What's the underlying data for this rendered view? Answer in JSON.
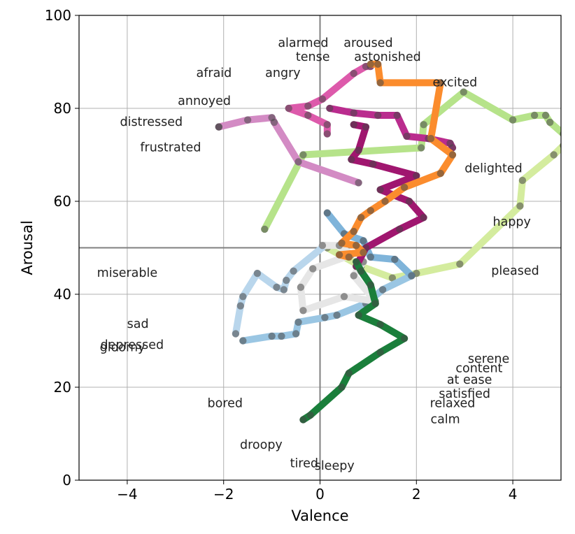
{
  "chart_data": {
    "type": "line",
    "title": "",
    "xlabel": "Valence",
    "ylabel": "Arousal",
    "xlim": [
      -5,
      5
    ],
    "ylim": [
      0,
      100
    ],
    "x_ticks": [
      -4,
      -2,
      0,
      2,
      4
    ],
    "x_tick_labels": [
      "−4",
      "−2",
      "0",
      "2",
      "4"
    ],
    "y_ticks": [
      0,
      20,
      40,
      60,
      80,
      100
    ],
    "y_tick_labels": [
      "0",
      "20",
      "40",
      "60",
      "80",
      "100"
    ],
    "grid": true,
    "reference_lines": {
      "x": 0,
      "y": 50
    },
    "emotion_labels": [
      {
        "text": "alarmed",
        "x": -0.35,
        "y": 94
      },
      {
        "text": "aroused",
        "x": 1.0,
        "y": 94
      },
      {
        "text": "tense",
        "x": -0.15,
        "y": 91
      },
      {
        "text": "astonished",
        "x": 1.4,
        "y": 91
      },
      {
        "text": "afraid",
        "x": -2.2,
        "y": 87.5
      },
      {
        "text": "angry",
        "x": -0.77,
        "y": 87.5
      },
      {
        "text": "excited",
        "x": 2.8,
        "y": 85.5
      },
      {
        "text": "annoyed",
        "x": -2.4,
        "y": 81.5
      },
      {
        "text": "distressed",
        "x": -3.5,
        "y": 77
      },
      {
        "text": "frustrated",
        "x": -3.1,
        "y": 71.5
      },
      {
        "text": "delighted",
        "x": 3.6,
        "y": 67
      },
      {
        "text": "happy",
        "x": 3.98,
        "y": 55.5
      },
      {
        "text": "miserable",
        "x": -4.0,
        "y": 44.5
      },
      {
        "text": "pleased",
        "x": 4.05,
        "y": 45
      },
      {
        "text": "sad",
        "x": -3.78,
        "y": 33.5
      },
      {
        "text": "depressed",
        "x": -3.9,
        "y": 29
      },
      {
        "text": "gloomy",
        "x": -4.1,
        "y": 28.5
      },
      {
        "text": "serene",
        "x": 3.5,
        "y": 26
      },
      {
        "text": "content",
        "x": 3.3,
        "y": 24
      },
      {
        "text": "at ease",
        "x": 3.1,
        "y": 21.5
      },
      {
        "text": "satisfied",
        "x": 3.0,
        "y": 18.5
      },
      {
        "text": "relaxed",
        "x": 2.75,
        "y": 16.5
      },
      {
        "text": "calm",
        "x": 2.6,
        "y": 13
      },
      {
        "text": "bored",
        "x": -1.97,
        "y": 16.5
      },
      {
        "text": "droopy",
        "x": -1.22,
        "y": 7.5
      },
      {
        "text": "tired",
        "x": -0.33,
        "y": 3.5
      },
      {
        "text": "sleepy",
        "x": 0.3,
        "y": 3
      }
    ],
    "series": [
      {
        "color": "#b6e38a",
        "points": [
          [
            -1.15,
            54
          ],
          [
            -0.35,
            70
          ],
          [
            2.1,
            71.5
          ],
          [
            2.15,
            76.5
          ],
          [
            2.98,
            83.5
          ],
          [
            4.0,
            77.5
          ],
          [
            4.45,
            78.5
          ],
          [
            4.68,
            78.5
          ],
          [
            4.77,
            77
          ],
          [
            5.05,
            74.5
          ]
        ]
      },
      {
        "color": "#d4ec9e",
        "points": [
          [
            5.05,
            72
          ],
          [
            4.85,
            70
          ],
          [
            4.2,
            64.5
          ],
          [
            4.15,
            59
          ],
          [
            2.9,
            46.5
          ],
          [
            2.0,
            44.5
          ],
          [
            1.5,
            43.5
          ],
          [
            0.85,
            46
          ],
          [
            0.15,
            50
          ]
        ]
      },
      {
        "color": "#b9d6ec",
        "points": [
          [
            0.1,
            50.5
          ],
          [
            -0.55,
            45
          ],
          [
            -0.7,
            43
          ],
          [
            -0.75,
            41
          ],
          [
            -0.9,
            41.5
          ],
          [
            -1.3,
            44.5
          ],
          [
            -1.6,
            39.5
          ],
          [
            -1.65,
            37.5
          ],
          [
            -1.75,
            31.5
          ]
        ]
      },
      {
        "color": "#9ac6e3",
        "points": [
          [
            -1.6,
            30
          ],
          [
            -1.0,
            31
          ],
          [
            -0.8,
            31
          ],
          [
            -0.5,
            31.5
          ],
          [
            -0.45,
            34
          ],
          [
            0.1,
            35
          ],
          [
            0.35,
            35.5
          ],
          [
            0.95,
            38
          ],
          [
            1.3,
            41
          ],
          [
            1.9,
            44
          ]
        ]
      },
      {
        "color": "#7fb4da",
        "points": [
          [
            1.9,
            44
          ],
          [
            1.55,
            47.5
          ],
          [
            1.05,
            48
          ],
          [
            0.9,
            51.5
          ],
          [
            0.5,
            53
          ],
          [
            0.15,
            57.5
          ]
        ]
      },
      {
        "color": "#e6e6e6",
        "points": [
          [
            0.05,
            50.5
          ],
          [
            0.4,
            50.5
          ],
          [
            0.65,
            48.5
          ],
          [
            -0.15,
            45.5
          ],
          [
            -0.4,
            41.5
          ],
          [
            -0.35,
            36.5
          ],
          [
            0.5,
            39.5
          ],
          [
            1.15,
            38.5
          ],
          [
            0.7,
            44
          ],
          [
            0.9,
            47
          ]
        ]
      },
      {
        "color": "#d38bc4",
        "points": [
          [
            0.8,
            64
          ],
          [
            -0.45,
            68.5
          ],
          [
            -0.95,
            77
          ],
          [
            -1.0,
            78
          ],
          [
            -1.5,
            77.5
          ],
          [
            -2.1,
            76
          ],
          [
            -2.1,
            76
          ]
        ]
      },
      {
        "color": "#dd5aab",
        "points": [
          [
            0.15,
            74.5
          ],
          [
            0.15,
            76.5
          ],
          [
            -0.25,
            78.5
          ],
          [
            -0.65,
            80
          ],
          [
            -0.25,
            80.5
          ],
          [
            0.05,
            82
          ],
          [
            0.7,
            87.5
          ],
          [
            0.95,
            89
          ],
          [
            1.05,
            89
          ]
        ]
      },
      {
        "color": "#ba2c8e",
        "points": [
          [
            0.2,
            80
          ],
          [
            0.7,
            79
          ],
          [
            1.2,
            78.5
          ],
          [
            1.6,
            78.5
          ],
          [
            1.8,
            74
          ],
          [
            2.25,
            73.5
          ],
          [
            2.7,
            72.5
          ],
          [
            2.75,
            71.5
          ]
        ]
      },
      {
        "color": "#a0166f",
        "points": [
          [
            0.7,
            76.5
          ],
          [
            0.95,
            76
          ],
          [
            0.8,
            71
          ],
          [
            0.65,
            69
          ],
          [
            1.1,
            68
          ],
          [
            2.0,
            65.5
          ],
          [
            1.25,
            62.5
          ],
          [
            1.85,
            60
          ],
          [
            2.15,
            56.5
          ],
          [
            1.65,
            54
          ],
          [
            0.95,
            50
          ],
          [
            0.75,
            46
          ]
        ]
      },
      {
        "color": "#fb8c2d",
        "points": [
          [
            1.05,
            89.5
          ],
          [
            1.2,
            89.5
          ],
          [
            1.25,
            85.5
          ],
          [
            2.5,
            85.5
          ],
          [
            2.3,
            73.5
          ],
          [
            2.75,
            70
          ],
          [
            2.5,
            66
          ],
          [
            1.75,
            63
          ],
          [
            1.35,
            60
          ],
          [
            1.05,
            58
          ],
          [
            0.85,
            56.5
          ],
          [
            0.7,
            53.5
          ],
          [
            0.45,
            51
          ],
          [
            0.75,
            50.5
          ],
          [
            0.9,
            49
          ],
          [
            0.4,
            48.5
          ],
          [
            0.6,
            48
          ]
        ]
      },
      {
        "color": "#1a7f3b",
        "points": [
          [
            0.75,
            47
          ],
          [
            0.85,
            45
          ],
          [
            1.05,
            42
          ],
          [
            1.15,
            38
          ],
          [
            0.8,
            35.5
          ],
          [
            1.25,
            33.5
          ],
          [
            1.75,
            30.5
          ],
          [
            1.25,
            27.5
          ],
          [
            0.6,
            23
          ],
          [
            0.45,
            20
          ],
          [
            -0.2,
            14
          ],
          [
            -0.35,
            13
          ]
        ]
      }
    ]
  }
}
